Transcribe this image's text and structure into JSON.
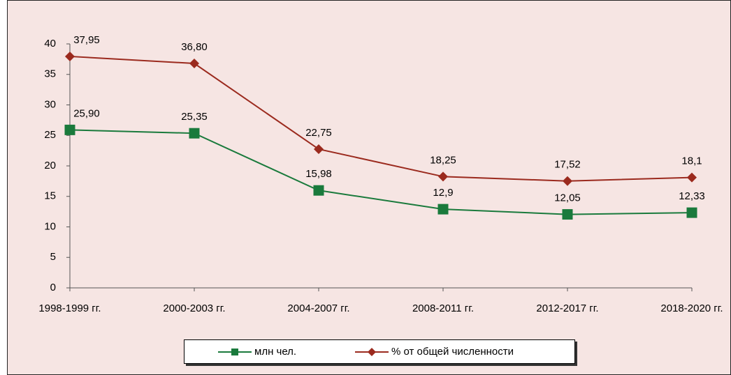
{
  "chart_data": {
    "type": "line",
    "categories": [
      "1998-1999 гг.",
      "2000-2003 гг.",
      "2004-2007 гг.",
      "2008-2011 гг.",
      "2012-2017 гг.",
      "2018-2020 гг."
    ],
    "series": [
      {
        "name": "млн чел.",
        "color": "#1a7a3c",
        "marker": "square",
        "values": [
          25.9,
          25.35,
          15.98,
          12.9,
          12.05,
          12.33
        ],
        "value_labels": [
          "25,90",
          "25,35",
          "15,98",
          "12,9",
          "12,05",
          "12,33"
        ]
      },
      {
        "name": "% от общей численности",
        "color": "#9b2a1e",
        "marker": "diamond",
        "values": [
          37.95,
          36.8,
          22.75,
          18.25,
          17.52,
          18.1
        ],
        "value_labels": [
          "37,95",
          "36,80",
          "22,75",
          "18,25",
          "17,52",
          "18,1"
        ]
      }
    ],
    "ylim": [
      0,
      40
    ],
    "yticks": [
      0,
      5,
      10,
      15,
      20,
      25,
      30,
      35,
      40
    ],
    "grid": false,
    "legend": "bottom"
  }
}
